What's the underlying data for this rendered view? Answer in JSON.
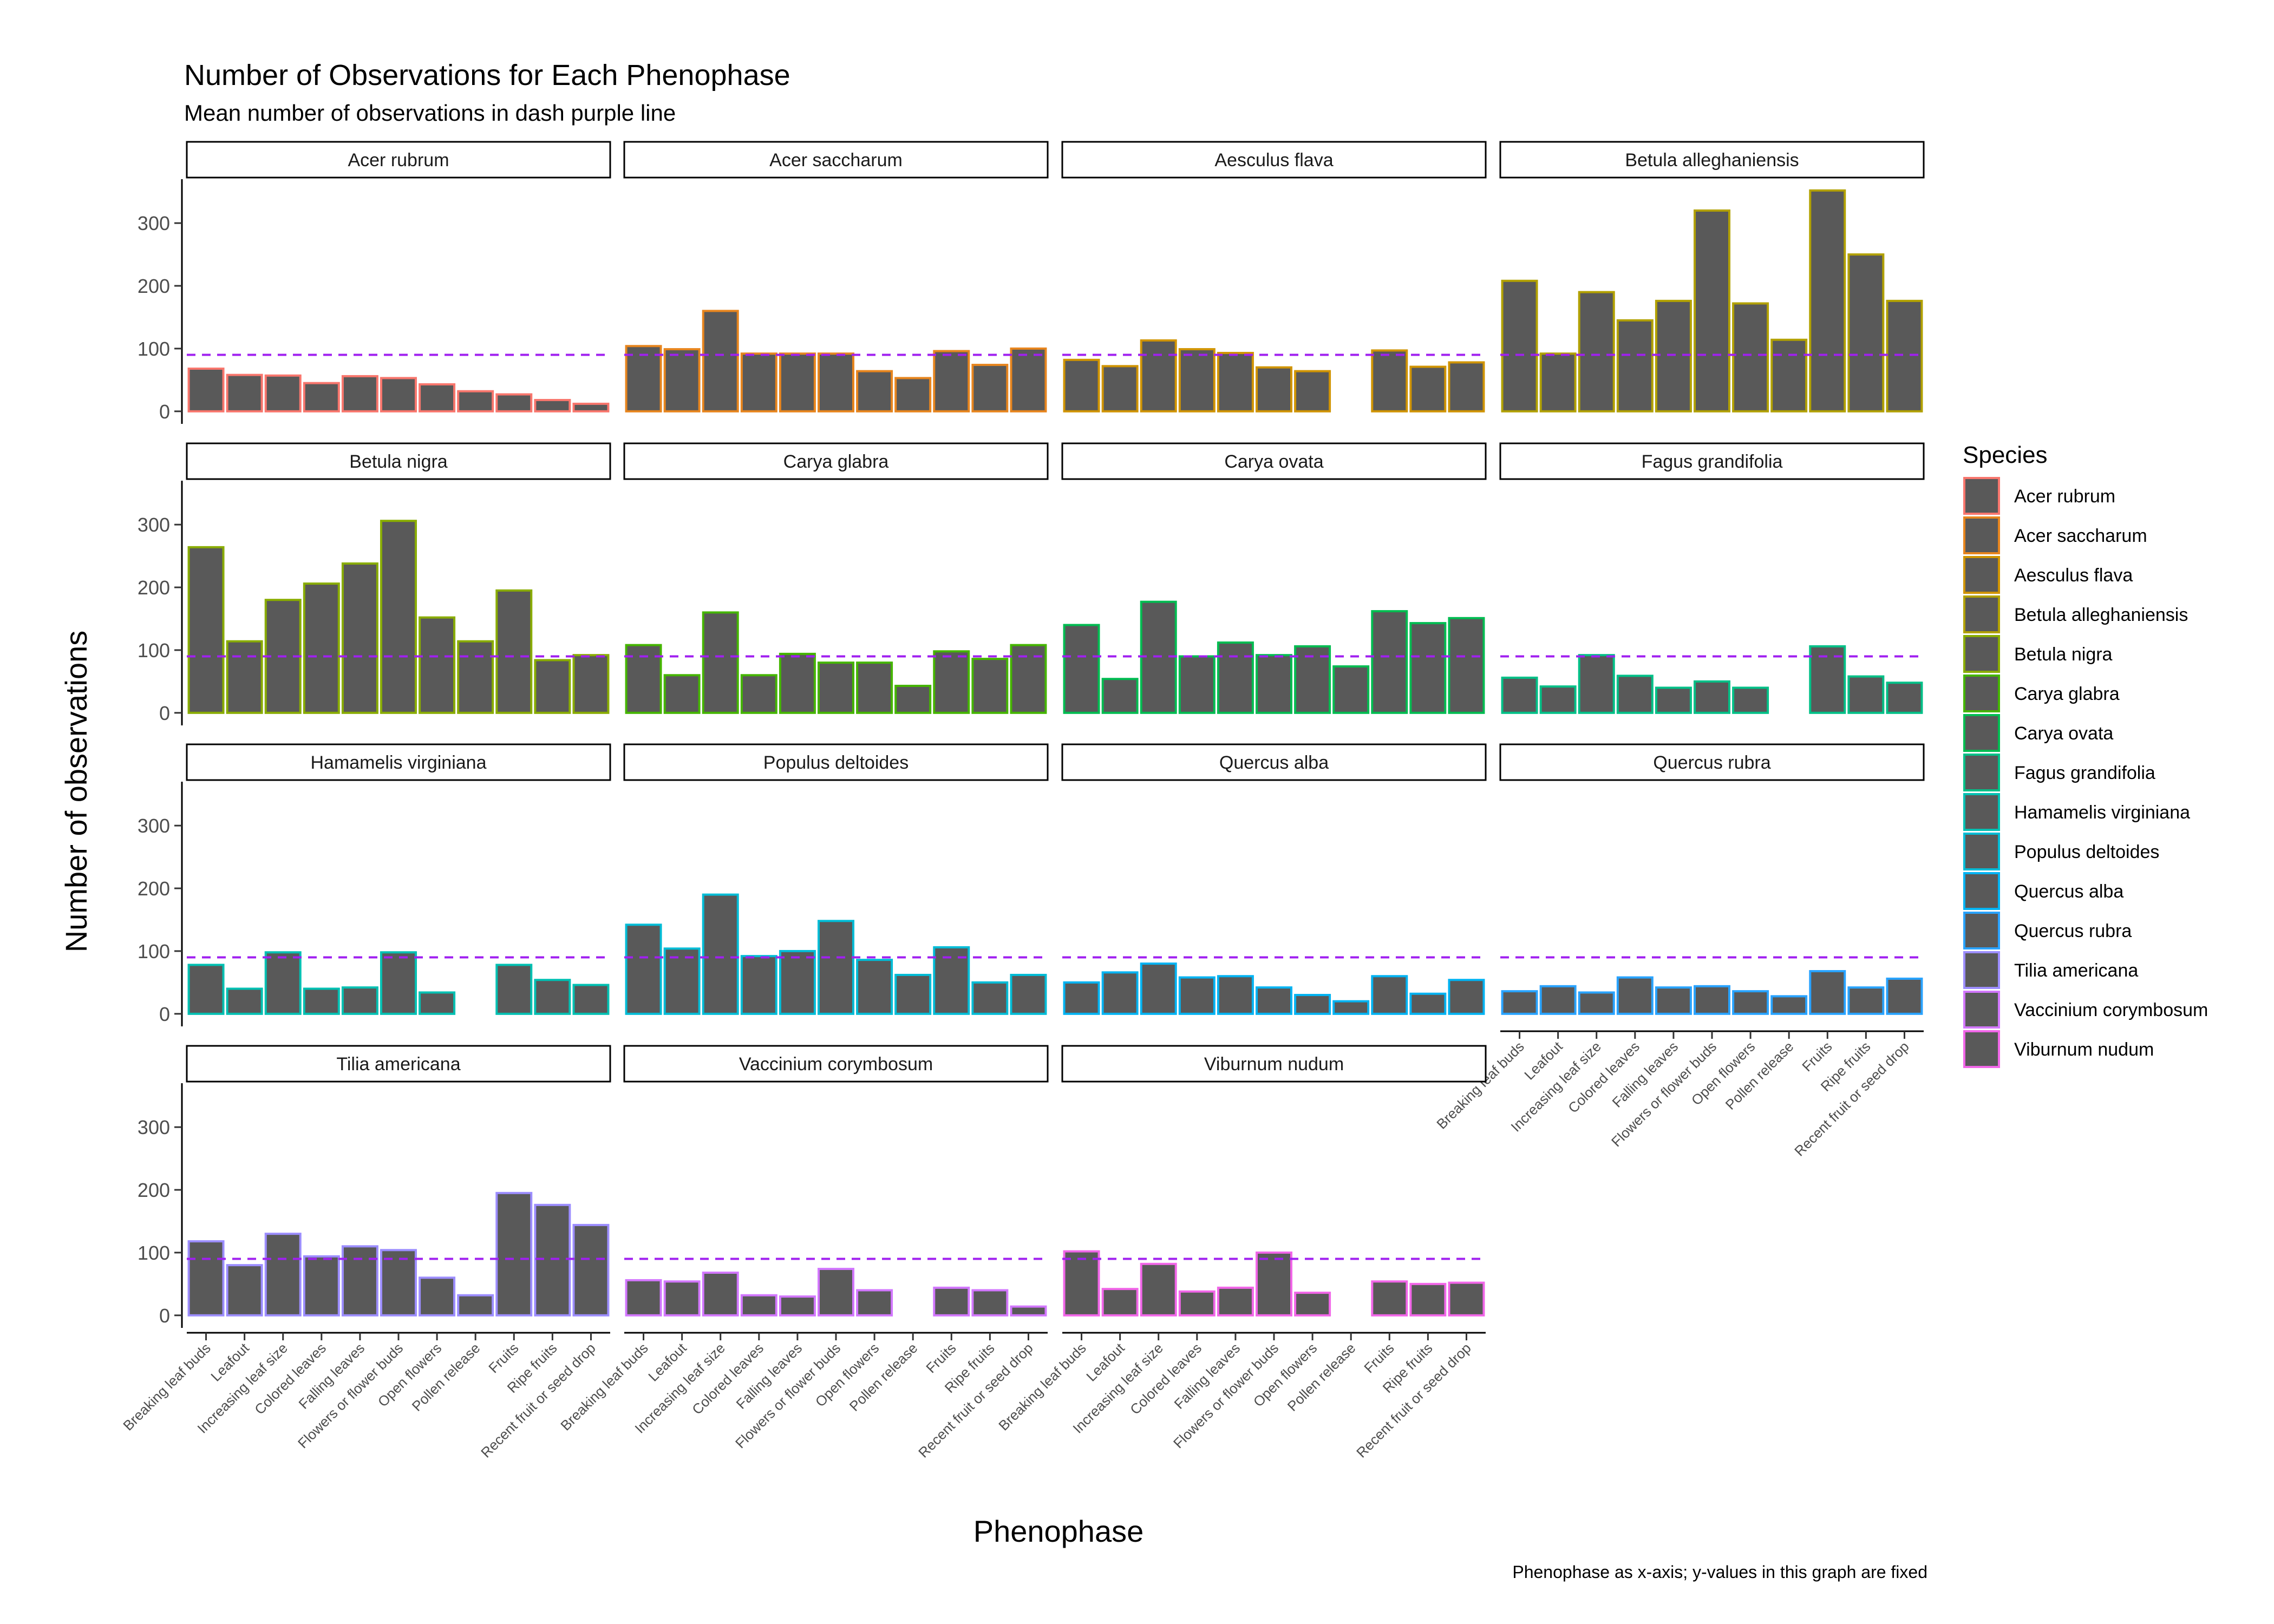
{
  "chart_data": {
    "type": "bar",
    "title": "Number of Observations for Each Phenophase",
    "subtitle": "Mean number of observations in dash purple line",
    "caption": "Phenophase as x-axis; y-values in this graph are fixed",
    "xlabel": "Phenophase",
    "ylabel": "Number of observations",
    "ylim": [
      -20,
      370
    ],
    "yticks": [
      0,
      100,
      200,
      300
    ],
    "mean_line": 90,
    "grid": false,
    "legend_title": "Species",
    "legend_position": "right",
    "categories": [
      "Breaking leaf buds",
      "Leafout",
      "Increasing leaf size",
      "Colored leaves",
      "Falling leaves",
      "Flowers or flower buds",
      "Open flowers",
      "Pollen release",
      "Fruits",
      "Ripe fruits",
      "Recent fruit or seed drop"
    ],
    "series": [
      {
        "name": "Acer rubrum",
        "color": "#F8766D",
        "values": [
          68,
          58,
          57,
          45,
          56,
          53,
          43,
          32,
          27,
          18,
          12
        ]
      },
      {
        "name": "Acer saccharum",
        "color": "#E7851E",
        "values": [
          104,
          99,
          160,
          92,
          92,
          92,
          64,
          53,
          96,
          74,
          100
        ]
      },
      {
        "name": "Aesculus flava",
        "color": "#D09400",
        "values": [
          82,
          72,
          113,
          99,
          93,
          70,
          64,
          null,
          97,
          71,
          78
        ]
      },
      {
        "name": "Betula alleghaniensis",
        "color": "#B2A100",
        "values": [
          208,
          92,
          190,
          145,
          176,
          320,
          172,
          114,
          352,
          250,
          176
        ]
      },
      {
        "name": "Betula nigra",
        "color": "#89AC00",
        "values": [
          264,
          114,
          180,
          206,
          238,
          306,
          152,
          114,
          195,
          84,
          92
        ]
      },
      {
        "name": "Carya glabra",
        "color": "#45B500",
        "values": [
          108,
          60,
          160,
          60,
          94,
          80,
          80,
          43,
          98,
          86,
          108
        ]
      },
      {
        "name": "Carya ovata",
        "color": "#00BC51",
        "values": [
          140,
          54,
          177,
          90,
          112,
          92,
          106,
          74,
          162,
          143,
          151
        ]
      },
      {
        "name": "Fagus grandifolia",
        "color": "#00C087",
        "values": [
          56,
          42,
          92,
          59,
          40,
          50,
          40,
          null,
          106,
          58,
          48
        ]
      },
      {
        "name": "Hamamelis virginiana",
        "color": "#00C0B2",
        "values": [
          78,
          40,
          98,
          40,
          42,
          98,
          34,
          null,
          78,
          54,
          46
        ]
      },
      {
        "name": "Populus deltoides",
        "color": "#00BCD6",
        "values": [
          142,
          104,
          190,
          92,
          100,
          148,
          86,
          62,
          106,
          50,
          62
        ]
      },
      {
        "name": "Quercus alba",
        "color": "#00B3F2",
        "values": [
          50,
          66,
          80,
          58,
          60,
          42,
          30,
          20,
          60,
          32,
          54
        ]
      },
      {
        "name": "Quercus rubra",
        "color": "#29A3FF",
        "values": [
          36,
          44,
          34,
          58,
          42,
          44,
          36,
          28,
          68,
          42,
          56
        ]
      },
      {
        "name": "Tilia americana",
        "color": "#9C8DFF",
        "values": [
          118,
          80,
          130,
          94,
          110,
          104,
          60,
          32,
          195,
          176,
          144
        ]
      },
      {
        "name": "Vaccinium corymbosum",
        "color": "#D277FF",
        "values": [
          56,
          54,
          68,
          32,
          30,
          74,
          40,
          null,
          44,
          40,
          14
        ]
      },
      {
        "name": "Viburnum nudum",
        "color": "#F166E8",
        "values": [
          102,
          42,
          82,
          38,
          44,
          100,
          36,
          null,
          54,
          50,
          52
        ]
      }
    ],
    "legend_colors": [
      "#F8766D",
      "#E7851E",
      "#D09400",
      "#B2A100",
      "#89AC00",
      "#45B500",
      "#00BC51",
      "#00C087",
      "#00C0B2",
      "#00BCD6",
      "#00B3F2",
      "#29A3FF",
      "#9C8DFF",
      "#D277FF",
      "#F166E8"
    ]
  }
}
